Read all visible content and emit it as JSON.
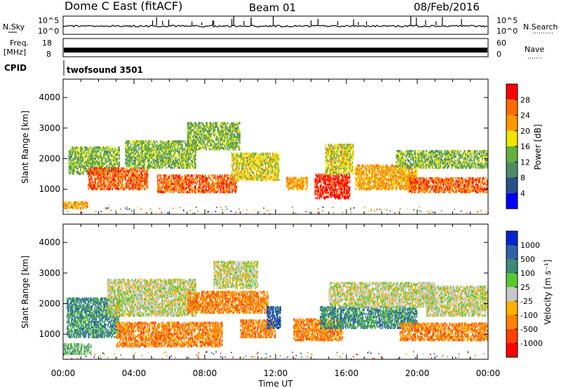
{
  "header": {
    "station": "Dome C East (fitACF)",
    "beam": "Beam 01",
    "date": "08/Feb/2016"
  },
  "labels": {
    "nsky": "N.Sky",
    "nsearch": "N.Search",
    "freq_line1": "Freq.",
    "freq_line2": "[MHz]",
    "nave": "Nave",
    "cpid": "CPID",
    "program": "twofsound 3501"
  },
  "colors": {
    "power": [
      "#0000ff",
      "#28508c",
      "#4e8a64",
      "#64b03c",
      "#f0e400",
      "#ff9800",
      "#ff6a00",
      "#ff0000"
    ],
    "velocity": [
      "#0026d2",
      "#2f62a8",
      "#3c8a78",
      "#58c832",
      "#c8c8c8",
      "#ffb000",
      "#ff8200",
      "#ff4000",
      "#ff0000"
    ]
  },
  "chart_data": [
    {
      "type": "line",
      "name": "noise-panel",
      "left_axis_label": "N.Sky",
      "right_axis_label": "N.Search",
      "left_ticks": [
        "10^5",
        "10^0"
      ],
      "right_ticks": [
        "10^5",
        "10^0"
      ]
    },
    {
      "type": "line",
      "name": "freq-panel",
      "left_ticks": [
        "18",
        "8"
      ],
      "right_ticks": [
        "60",
        "0"
      ],
      "cpid": "twofsound 3501"
    },
    {
      "type": "heatmap",
      "title": "Power",
      "ylabel": "Slant Range [km]",
      "ylim": [
        180,
        4600
      ],
      "yticks": [
        "1000",
        "2000",
        "3000",
        "4000"
      ],
      "xlim": [
        "00:00",
        "24:00"
      ],
      "colorbar_label": "Power [dB]",
      "colorbar_ticks": [
        "4",
        "8",
        "12",
        "16",
        "20",
        "24",
        "28"
      ],
      "bands": [
        {
          "h0": 0.0,
          "h1": 1.4,
          "r0": 380,
          "r1": 620,
          "level": 5
        },
        {
          "h0": 0.3,
          "h1": 3.2,
          "r0": 1500,
          "r1": 2400,
          "level": 3
        },
        {
          "h0": 1.4,
          "h1": 4.8,
          "r0": 1000,
          "r1": 1700,
          "level": 6
        },
        {
          "h0": 3.5,
          "h1": 7.5,
          "r0": 1700,
          "r1": 2600,
          "level": 3
        },
        {
          "h0": 5.3,
          "h1": 9.8,
          "r0": 900,
          "r1": 1500,
          "level": 6
        },
        {
          "h0": 7.0,
          "h1": 10.0,
          "r0": 2300,
          "r1": 3200,
          "level": 3
        },
        {
          "h0": 9.5,
          "h1": 12.2,
          "r0": 1300,
          "r1": 2200,
          "level": 4
        },
        {
          "h0": 12.6,
          "h1": 13.8,
          "r0": 1000,
          "r1": 1400,
          "level": 5
        },
        {
          "h0": 14.2,
          "h1": 16.2,
          "r0": 700,
          "r1": 1500,
          "level": 7
        },
        {
          "h0": 14.8,
          "h1": 16.4,
          "r0": 1500,
          "r1": 2500,
          "level": 4
        },
        {
          "h0": 16.5,
          "h1": 20.0,
          "r0": 1000,
          "r1": 1800,
          "level": 5
        },
        {
          "h0": 19.5,
          "h1": 24.0,
          "r0": 900,
          "r1": 1400,
          "level": 6
        },
        {
          "h0": 18.8,
          "h1": 24.0,
          "r0": 1700,
          "r1": 2300,
          "level": 3
        }
      ]
    },
    {
      "type": "heatmap",
      "title": "Velocity",
      "ylabel": "Slant Range [km]",
      "ylim": [
        180,
        4600
      ],
      "yticks": [
        "1000",
        "2000",
        "3000",
        "4000"
      ],
      "xlim": [
        "00:00",
        "24:00"
      ],
      "xticks": [
        "00:00",
        "04:00",
        "08:00",
        "12:00",
        "16:00",
        "20:00",
        "00:00"
      ],
      "xlabel": "Time UT",
      "colorbar_label": "Velocity [m s⁻¹]",
      "colorbar_ticks": [
        "1000",
        "500",
        "100",
        "25",
        "-25",
        "-100",
        "-500",
        "-1000"
      ],
      "bands": [
        {
          "h0": 0.0,
          "h1": 1.6,
          "r0": 350,
          "r1": 700,
          "level": 3
        },
        {
          "h0": 0.2,
          "h1": 3.2,
          "r0": 900,
          "r1": 2200,
          "level": 2
        },
        {
          "h0": 2.5,
          "h1": 7.5,
          "r0": 1600,
          "r1": 2800,
          "level": 4
        },
        {
          "h0": 3.0,
          "h1": 9.0,
          "r0": 600,
          "r1": 1400,
          "level": 6
        },
        {
          "h0": 7.0,
          "h1": 11.6,
          "r0": 1700,
          "r1": 2400,
          "level": 6
        },
        {
          "h0": 8.5,
          "h1": 11.0,
          "r0": 2500,
          "r1": 3400,
          "level": 4
        },
        {
          "h0": 10.0,
          "h1": 12.0,
          "r0": 900,
          "r1": 1500,
          "level": 6
        },
        {
          "h0": 11.5,
          "h1": 12.3,
          "r0": 1200,
          "r1": 1900,
          "level": 1
        },
        {
          "h0": 13.0,
          "h1": 15.8,
          "r0": 800,
          "r1": 1500,
          "level": 6
        },
        {
          "h0": 14.5,
          "h1": 20.0,
          "r0": 1200,
          "r1": 1900,
          "level": 2
        },
        {
          "h0": 15.0,
          "h1": 21.0,
          "r0": 1900,
          "r1": 2700,
          "level": 4
        },
        {
          "h0": 19.0,
          "h1": 24.0,
          "r0": 800,
          "r1": 1400,
          "level": 6
        },
        {
          "h0": 20.5,
          "h1": 24.0,
          "r0": 1600,
          "r1": 2600,
          "level": 4
        }
      ]
    }
  ]
}
